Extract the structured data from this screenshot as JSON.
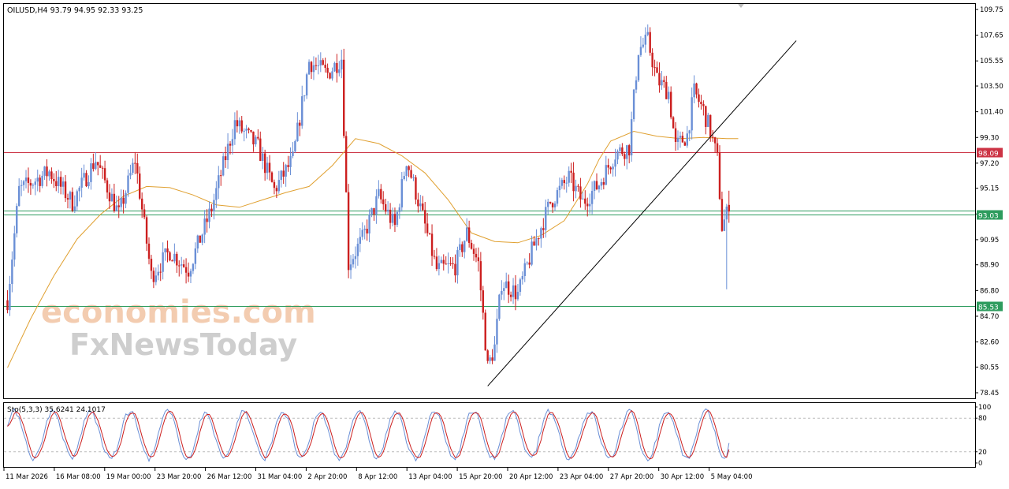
{
  "header": {
    "symbol_text": "OILUSD,H4  93.79 94.95 92.33 93.25"
  },
  "watermark": {
    "line1": "economies.com",
    "line2": "FxNewsToday"
  },
  "colors": {
    "bull": "#6a8fd6",
    "bear": "#cc1f1f",
    "ma": "#e0a030",
    "resistance": "#cc3344",
    "support": "#2e9c5e",
    "trendline": "#000000",
    "sto_main": "#6a8fd6",
    "sto_signal": "#cc1f1f",
    "grid_dash": "#bbbbbb",
    "watermark1": "#f2c7a8",
    "watermark2": "#c9c9c9"
  },
  "price_axis": {
    "ticks": [
      "109.75",
      "107.65",
      "105.55",
      "103.50",
      "101.40",
      "99.30",
      "97.20",
      "95.15",
      "93.05",
      "90.95",
      "88.90",
      "86.80",
      "84.70",
      "82.60",
      "80.55",
      "78.45"
    ]
  },
  "time_axis": {
    "labels": [
      "11 Mar 2026",
      "16 Mar 08:00",
      "19 Mar 00:00",
      "23 Mar 20:00",
      "26 Mar 12:00",
      "31 Mar 04:00",
      "2 Apr 20:00",
      "8 Apr 12:00",
      "13 Apr 04:00",
      "15 Apr 20:00",
      "20 Apr 12:00",
      "23 Apr 04:00",
      "27 Apr 20:00",
      "30 Apr 12:00",
      "5 May 04:00"
    ]
  },
  "levels": [
    {
      "name": "resistance-line",
      "value": 98.09,
      "label": "98.09",
      "color": "#cc3344",
      "labeled": true
    },
    {
      "name": "current-price-line",
      "value": 93.03,
      "label": "93.03",
      "color": "#2e9c5e",
      "labeled": true
    },
    {
      "name": "support-upper-line",
      "value": 93.35,
      "label": "",
      "color": "#2e9c5e",
      "labeled": false
    },
    {
      "name": "support-lower-line",
      "value": 85.53,
      "label": "85.53",
      "color": "#2e9c5e",
      "labeled": true
    }
  ],
  "stochastic": {
    "label": "Sto(5,3,3) 35.6241 24.1017",
    "ticks": [
      "100",
      "80",
      "20",
      "0"
    ]
  },
  "chart_data": [
    {
      "type": "candlestick",
      "title": "OILUSD,H4",
      "timeframe": "H4",
      "ohlc_last": {
        "open": 93.79,
        "high": 94.95,
        "low": 92.33,
        "close": 93.25
      },
      "ylim": [
        78.45,
        109.75
      ],
      "series": [
        {
          "name": "",
          "kind": "moving-average",
          "note": "orange MA line",
          "x": [
            0,
            10,
            20,
            30,
            40,
            50,
            60,
            70,
            80,
            90,
            100,
            110,
            120,
            130,
            140,
            150,
            160,
            170,
            180,
            190,
            200,
            210,
            220,
            230,
            240,
            250,
            255,
            260,
            270,
            280,
            290,
            300,
            310,
            315
          ],
          "values": [
            80.5,
            84.5,
            88.0,
            91.0,
            93.0,
            94.5,
            95.3,
            95.2,
            94.6,
            93.8,
            93.6,
            94.2,
            94.8,
            95.3,
            97.0,
            99.2,
            98.8,
            97.8,
            96.4,
            94.2,
            91.5,
            90.8,
            90.7,
            91.3,
            92.5,
            95.5,
            97.5,
            99.0,
            99.8,
            99.4,
            99.2,
            99.3,
            99.2,
            99.2
          ]
        }
      ],
      "trendline": {
        "from": {
          "x": 207,
          "y": 79.0
        },
        "to": {
          "x": 340,
          "y": 107.2
        }
      },
      "anchors": [
        {
          "x": 0,
          "y": 86.0
        },
        {
          "x": 5,
          "y": 95.0
        },
        {
          "x": 18,
          "y": 96.5
        },
        {
          "x": 28,
          "y": 94.0
        },
        {
          "x": 38,
          "y": 97.5
        },
        {
          "x": 48,
          "y": 93.0
        },
        {
          "x": 55,
          "y": 97.5
        },
        {
          "x": 62,
          "y": 88.0
        },
        {
          "x": 70,
          "y": 90.0
        },
        {
          "x": 78,
          "y": 88.5
        },
        {
          "x": 88,
          "y": 93.5
        },
        {
          "x": 98,
          "y": 100.5
        },
        {
          "x": 108,
          "y": 98.5
        },
        {
          "x": 115,
          "y": 95.0
        },
        {
          "x": 123,
          "y": 97.5
        },
        {
          "x": 130,
          "y": 105.5
        },
        {
          "x": 138,
          "y": 104.5
        },
        {
          "x": 144,
          "y": 105.8
        },
        {
          "x": 147,
          "y": 89.0
        },
        {
          "x": 153,
          "y": 91.0
        },
        {
          "x": 160,
          "y": 94.5
        },
        {
          "x": 167,
          "y": 92.0
        },
        {
          "x": 172,
          "y": 97.5
        },
        {
          "x": 178,
          "y": 93.5
        },
        {
          "x": 185,
          "y": 88.5
        },
        {
          "x": 193,
          "y": 88.8
        },
        {
          "x": 198,
          "y": 91.5
        },
        {
          "x": 203,
          "y": 89.0
        },
        {
          "x": 207,
          "y": 80.5
        },
        {
          "x": 210,
          "y": 82.2
        },
        {
          "x": 213,
          "y": 87.5
        },
        {
          "x": 220,
          "y": 86.5
        },
        {
          "x": 226,
          "y": 90.0
        },
        {
          "x": 234,
          "y": 94.0
        },
        {
          "x": 242,
          "y": 96.0
        },
        {
          "x": 248,
          "y": 94.0
        },
        {
          "x": 255,
          "y": 95.5
        },
        {
          "x": 262,
          "y": 98.0
        },
        {
          "x": 268,
          "y": 98.5
        },
        {
          "x": 272,
          "y": 106.5
        },
        {
          "x": 276,
          "y": 107.2
        },
        {
          "x": 280,
          "y": 104.0
        },
        {
          "x": 285,
          "y": 103.0
        },
        {
          "x": 288,
          "y": 98.5
        },
        {
          "x": 293,
          "y": 99.5
        },
        {
          "x": 296,
          "y": 103.0
        },
        {
          "x": 300,
          "y": 101.5
        },
        {
          "x": 303,
          "y": 99.8
        },
        {
          "x": 306,
          "y": 97.5
        },
        {
          "x": 308,
          "y": 92.0
        },
        {
          "x": 310,
          "y": 93.0
        },
        {
          "x": 311,
          "y": 93.25
        }
      ]
    },
    {
      "type": "line",
      "title": "Sto(5,3,3) 35.6241 24.1017",
      "ylim": [
        0,
        100
      ],
      "levels": [
        80,
        20
      ],
      "series": [
        {
          "name": "",
          "last_value": 35.6241
        },
        {
          "name": "",
          "last_value": 24.1017
        }
      ]
    }
  ]
}
